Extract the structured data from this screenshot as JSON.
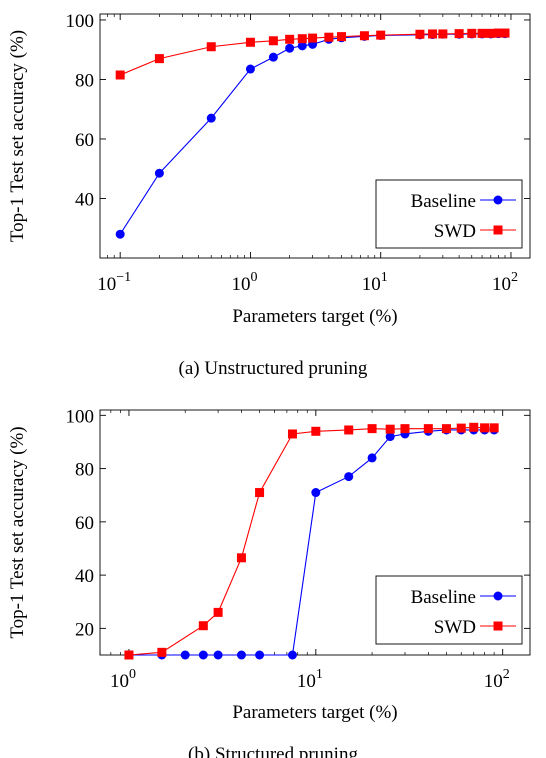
{
  "chart_data": [
    {
      "type": "line",
      "caption": "(a) Unstructured pruning",
      "xlabel": "Parameters target (%)",
      "ylabel": "Top-1 Test set accuracy (%)",
      "xscale": "log",
      "xlim": [
        0.07,
        140
      ],
      "ylim": [
        20,
        102
      ],
      "xticks": [
        0.1,
        1,
        10,
        100
      ],
      "xtick_labels": [
        {
          "base": "10",
          "exp": "−1"
        },
        {
          "base": "10",
          "exp": "0"
        },
        {
          "base": "10",
          "exp": "1"
        },
        {
          "base": "10",
          "exp": "2"
        }
      ],
      "yticks": [
        40,
        60,
        80,
        100
      ],
      "ytick_labels": [
        "40",
        "60",
        "80",
        "100"
      ],
      "grid": false,
      "legend_position": "bottom-right",
      "series": [
        {
          "name": "Baseline",
          "color": "#0000ff",
          "marker": "circle",
          "points": [
            [
              0.1,
              28
            ],
            [
              0.2,
              48.5
            ],
            [
              0.5,
              67
            ],
            [
              1,
              83.5
            ],
            [
              1.5,
              87.5
            ],
            [
              2,
              90.5
            ],
            [
              2.5,
              91.3
            ],
            [
              3,
              91.8
            ],
            [
              4,
              93.5
            ],
            [
              5,
              94
            ],
            [
              7.5,
              94.5
            ],
            [
              10,
              94.8
            ],
            [
              20,
              95
            ],
            [
              25,
              95.1
            ],
            [
              30,
              95.2
            ],
            [
              40,
              95.2
            ],
            [
              50,
              95.3
            ],
            [
              60,
              95.3
            ],
            [
              70,
              95.3
            ],
            [
              80,
              95.4
            ],
            [
              90,
              95.4
            ]
          ]
        },
        {
          "name": "SWD",
          "color": "#ff0000",
          "marker": "square",
          "points": [
            [
              0.1,
              81.5
            ],
            [
              0.2,
              87
            ],
            [
              0.5,
              91
            ],
            [
              1,
              92.5
            ],
            [
              1.5,
              93
            ],
            [
              2,
              93.5
            ],
            [
              2.5,
              93.7
            ],
            [
              3,
              93.9
            ],
            [
              4,
              94.2
            ],
            [
              5,
              94.4
            ],
            [
              7.5,
              94.7
            ],
            [
              10,
              94.9
            ],
            [
              20,
              95.2
            ],
            [
              25,
              95.3
            ],
            [
              30,
              95.3
            ],
            [
              40,
              95.4
            ],
            [
              50,
              95.5
            ],
            [
              60,
              95.5
            ],
            [
              70,
              95.5
            ],
            [
              80,
              95.6
            ],
            [
              90,
              95.6
            ]
          ]
        }
      ]
    },
    {
      "type": "line",
      "caption": "(b) Structured pruning",
      "xlabel": "Parameters target (%)",
      "ylabel": "Top-1 Test set accuracy (%)",
      "xscale": "log",
      "xlim": [
        0.7,
        140
      ],
      "ylim": [
        10,
        102
      ],
      "xticks": [
        1,
        10,
        100
      ],
      "xtick_labels": [
        {
          "base": "10",
          "exp": "0"
        },
        {
          "base": "10",
          "exp": "1"
        },
        {
          "base": "10",
          "exp": "2"
        }
      ],
      "yticks": [
        20,
        40,
        60,
        80,
        100
      ],
      "ytick_labels": [
        "20",
        "40",
        "60",
        "80",
        "100"
      ],
      "grid": false,
      "legend_position": "bottom-right",
      "series": [
        {
          "name": "Baseline",
          "color": "#0000ff",
          "marker": "circle",
          "points": [
            [
              1,
              10
            ],
            [
              1.5,
              10
            ],
            [
              2,
              10
            ],
            [
              2.5,
              10
            ],
            [
              3,
              10
            ],
            [
              4,
              10
            ],
            [
              5,
              10
            ],
            [
              7.5,
              10
            ],
            [
              10,
              71
            ],
            [
              15,
              77
            ],
            [
              20,
              84
            ],
            [
              25,
              92
            ],
            [
              30,
              93
            ],
            [
              40,
              94
            ],
            [
              50,
              94.5
            ],
            [
              60,
              94.5
            ],
            [
              70,
              94.5
            ],
            [
              80,
              94.5
            ],
            [
              90,
              94.5
            ]
          ]
        },
        {
          "name": "SWD",
          "color": "#ff0000",
          "marker": "square",
          "points": [
            [
              1,
              10
            ],
            [
              1.5,
              11
            ],
            [
              2.5,
              21
            ],
            [
              3,
              26
            ],
            [
              4,
              46.5
            ],
            [
              5,
              71
            ],
            [
              7.5,
              93
            ],
            [
              10,
              94
            ],
            [
              15,
              94.5
            ],
            [
              20,
              95
            ],
            [
              25,
              94.8
            ],
            [
              30,
              95
            ],
            [
              40,
              95
            ],
            [
              50,
              95
            ],
            [
              60,
              95.2
            ],
            [
              70,
              95.5
            ],
            [
              80,
              95.3
            ],
            [
              90,
              95.3
            ]
          ]
        }
      ]
    }
  ]
}
